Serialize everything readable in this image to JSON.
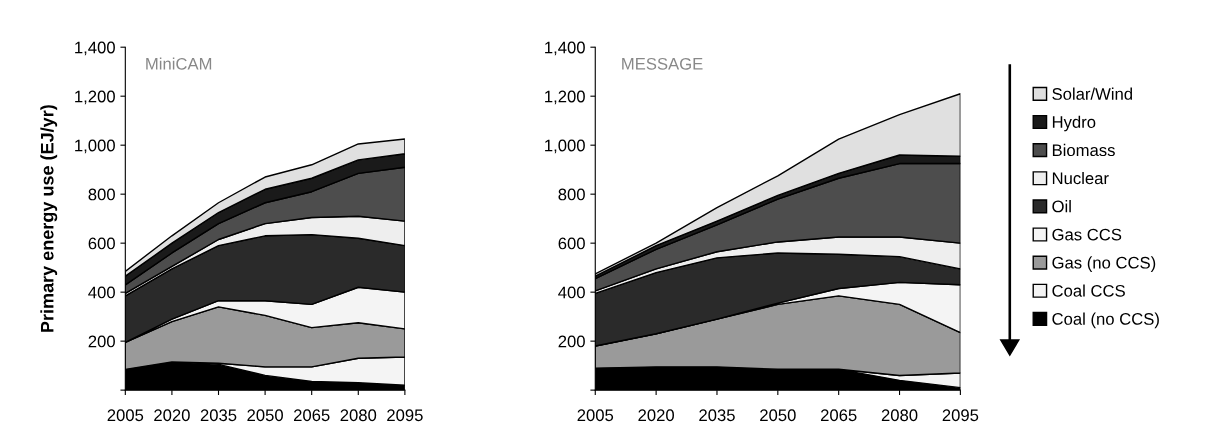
{
  "chart_data": [
    {
      "type": "area",
      "stacked": true,
      "ylabel": "Primary energy use (EJ/yr)",
      "annotations": [
        "MiniCAM"
      ],
      "x": [
        2005,
        2020,
        2035,
        2050,
        2065,
        2080,
        2095
      ],
      "xlim": [
        2005,
        2095
      ],
      "xticks": [
        2005,
        2020,
        2035,
        2050,
        2065,
        2080,
        2095
      ],
      "ylim": [
        0,
        1400
      ],
      "yticks": [
        {
          "value": 0,
          "label": null
        },
        200,
        400,
        600,
        800,
        {
          "value": 1000,
          "label": "1,000"
        },
        {
          "value": 1200,
          "label": "1,200"
        },
        {
          "value": 1400,
          "label": "1,400"
        }
      ],
      "grid": false,
      "legend": false,
      "series": [
        {
          "color": "#000000",
          "values": [
            85,
            115,
            105,
            60,
            35,
            30,
            20
          ]
        },
        {
          "color": "#f4f4f4",
          "values": [
            0,
            0,
            5,
            35,
            60,
            100,
            115
          ]
        },
        {
          "color": "#9a9a9a",
          "values": [
            110,
            165,
            230,
            210,
            160,
            145,
            115
          ]
        },
        {
          "color": "#f4f4f4",
          "values": [
            0,
            10,
            25,
            60,
            95,
            145,
            150
          ]
        },
        {
          "color": "#2a2a2a",
          "values": [
            190,
            205,
            225,
            265,
            285,
            200,
            190
          ]
        },
        {
          "color": "#eeeeee",
          "values": [
            10,
            10,
            25,
            50,
            70,
            90,
            100
          ]
        },
        {
          "color": "#4d4d4d",
          "values": [
            35,
            55,
            65,
            85,
            105,
            175,
            220
          ]
        },
        {
          "color": "#1a1a1a",
          "values": [
            35,
            40,
            45,
            55,
            55,
            55,
            55
          ]
        },
        {
          "color": "#e0e0e0",
          "values": [
            20,
            30,
            40,
            50,
            55,
            65,
            60
          ]
        }
      ]
    },
    {
      "type": "area",
      "stacked": true,
      "annotations": [
        "MESSAGE"
      ],
      "x": [
        2005,
        2020,
        2035,
        2050,
        2065,
        2080,
        2095
      ],
      "xlim": [
        2005,
        2095
      ],
      "xticks": [
        2005,
        2020,
        2035,
        2050,
        2065,
        2080,
        2095
      ],
      "ylim": [
        0,
        1400
      ],
      "yticks": [
        {
          "value": 0,
          "label": null
        },
        200,
        400,
        600,
        800,
        {
          "value": 1000,
          "label": "1,000"
        },
        {
          "value": 1200,
          "label": "1,200"
        },
        {
          "value": 1400,
          "label": "1,400"
        }
      ],
      "grid": false,
      "legend": "right",
      "series": [
        {
          "name": "Coal (no CCS)",
          "color": "#000000",
          "values": [
            90,
            95,
            95,
            85,
            85,
            40,
            10
          ]
        },
        {
          "name": "Coal CCS",
          "color": "#f4f4f4",
          "values": [
            0,
            0,
            0,
            0,
            0,
            20,
            60
          ]
        },
        {
          "name": "Gas (no CCS)",
          "color": "#9a9a9a",
          "values": [
            90,
            135,
            195,
            265,
            300,
            290,
            165
          ]
        },
        {
          "name": "Gas CCS",
          "color": "#f4f4f4",
          "values": [
            0,
            0,
            0,
            5,
            30,
            90,
            195
          ]
        },
        {
          "name": "Oil",
          "color": "#2a2a2a",
          "values": [
            215,
            250,
            250,
            205,
            140,
            105,
            65
          ]
        },
        {
          "name": "Nuclear",
          "color": "#eeeeee",
          "values": [
            10,
            15,
            25,
            45,
            70,
            80,
            105
          ]
        },
        {
          "name": "Biomass",
          "color": "#4d4d4d",
          "values": [
            50,
            80,
            110,
            175,
            240,
            300,
            325
          ]
        },
        {
          "name": "Hydro",
          "color": "#1a1a1a",
          "values": [
            10,
            15,
            15,
            15,
            20,
            35,
            30
          ]
        },
        {
          "name": "Solar/Wind",
          "color": "#e0e0e0",
          "values": [
            10,
            10,
            55,
            80,
            140,
            165,
            255
          ]
        }
      ]
    }
  ]
}
